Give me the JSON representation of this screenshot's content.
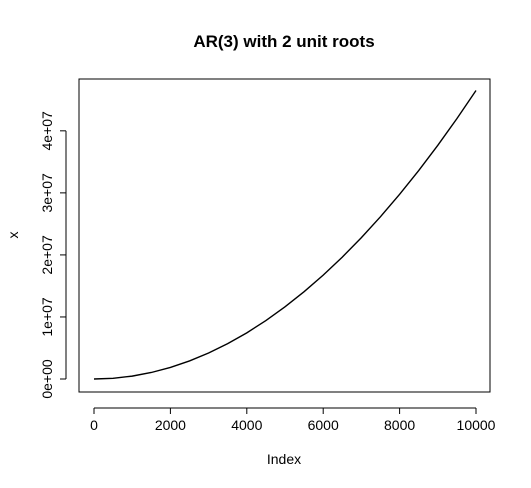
{
  "chart_data": {
    "type": "line",
    "title": "AR(3) with 2 unit roots",
    "xlabel": "Index",
    "ylabel": "x",
    "xlim": [
      0,
      10000
    ],
    "ylim": [
      0,
      46500000
    ],
    "x_ticks": [
      0,
      2000,
      4000,
      6000,
      8000,
      10000
    ],
    "x_tick_labels": [
      "0",
      "2000",
      "4000",
      "6000",
      "8000",
      "10000"
    ],
    "y_ticks": [
      0,
      10000000,
      20000000,
      30000000,
      40000000
    ],
    "y_tick_labels": [
      "0e+00",
      "1e+07",
      "2e+07",
      "3e+07",
      "4e+07"
    ],
    "grid": false,
    "series": [
      {
        "name": "x",
        "x": [
          0,
          500,
          1000,
          1500,
          2000,
          2500,
          3000,
          3500,
          4000,
          4500,
          5000,
          5500,
          6000,
          6500,
          7000,
          7500,
          8000,
          8500,
          9000,
          9500,
          10000
        ],
        "values": [
          0,
          116000,
          465000,
          1050000,
          1860000,
          2910000,
          4190000,
          5700000,
          7440000,
          9420000,
          11630000,
          14070000,
          16740000,
          19650000,
          22790000,
          26160000,
          29760000,
          33600000,
          37670000,
          41970000,
          46500000
        ]
      }
    ]
  }
}
